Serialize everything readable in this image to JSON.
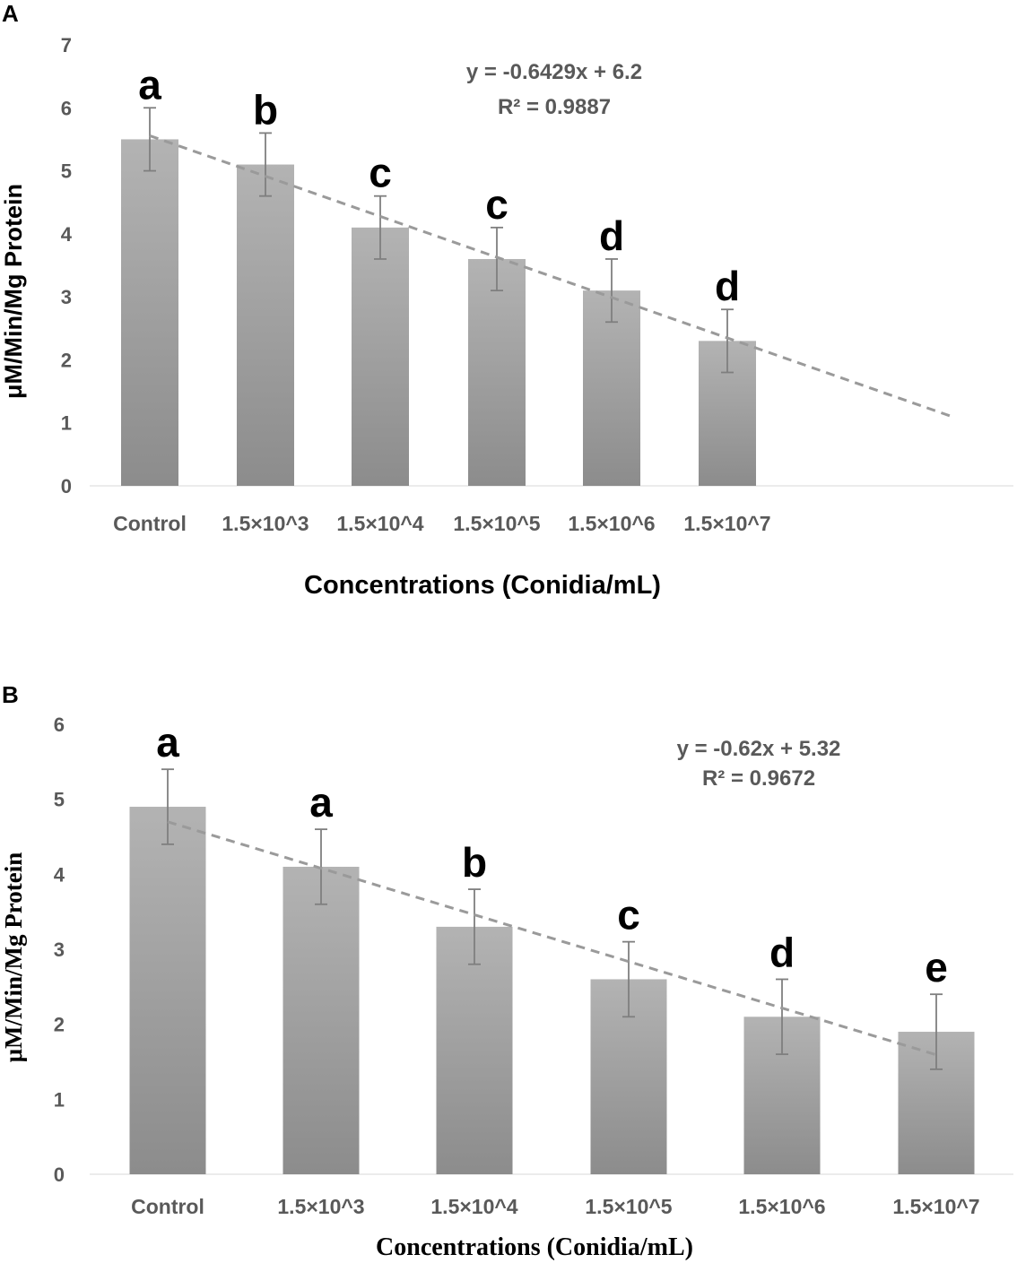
{
  "colors": {
    "bar_top": "#b3b3b3",
    "bar_bottom": "#8c8c8c",
    "trendline": "#9a9a9a",
    "error_bar": "#7f7f7f",
    "axis_text": "#595959"
  },
  "chart_data": [
    {
      "panel": "A",
      "type": "bar",
      "categories": [
        "Control",
        "1.5×10^3",
        "1.5×10^4",
        "1.5×10^5",
        "1.5×10^6",
        "1.5×10^7"
      ],
      "values": [
        5.5,
        5.1,
        4.1,
        3.6,
        3.1,
        2.3
      ],
      "errors": [
        0.5,
        0.5,
        0.5,
        0.5,
        0.5,
        0.5
      ],
      "significance": [
        "a",
        "b",
        "c",
        "c",
        "d",
        "d"
      ],
      "xlabel": "Concentrations (Conidia/mL)",
      "ylabel": "μM/Min/Mg Protein",
      "ylim": [
        0,
        7
      ],
      "yticks": [
        0,
        1,
        2,
        3,
        4,
        5,
        6,
        7
      ],
      "trendline": {
        "slope": -0.6429,
        "intercept": 6.2,
        "extends_to_x": 8
      },
      "equation": "y = -0.6429x + 6.2",
      "r_squared": "R² = 0.9887"
    },
    {
      "panel": "B",
      "type": "bar",
      "categories": [
        "Control",
        "1.5×10^3",
        "1.5×10^4",
        "1.5×10^5",
        "1.5×10^6",
        "1.5×10^7"
      ],
      "values": [
        4.9,
        4.1,
        3.3,
        2.6,
        2.1,
        1.9
      ],
      "errors": [
        0.5,
        0.5,
        0.5,
        0.5,
        0.5,
        0.5
      ],
      "significance": [
        "a",
        "a",
        "b",
        "c",
        "d",
        "e"
      ],
      "xlabel": "Concentrations (Conidia/mL)",
      "ylabel": "μM/Min/Mg Protein",
      "ylim": [
        0,
        6
      ],
      "yticks": [
        0,
        1,
        2,
        3,
        4,
        5,
        6
      ],
      "trendline": {
        "slope": -0.62,
        "intercept": 5.32,
        "extends_to_x": 6
      },
      "equation": "y = -0.62x + 5.32",
      "r_squared": "R² = 0.9672"
    }
  ]
}
